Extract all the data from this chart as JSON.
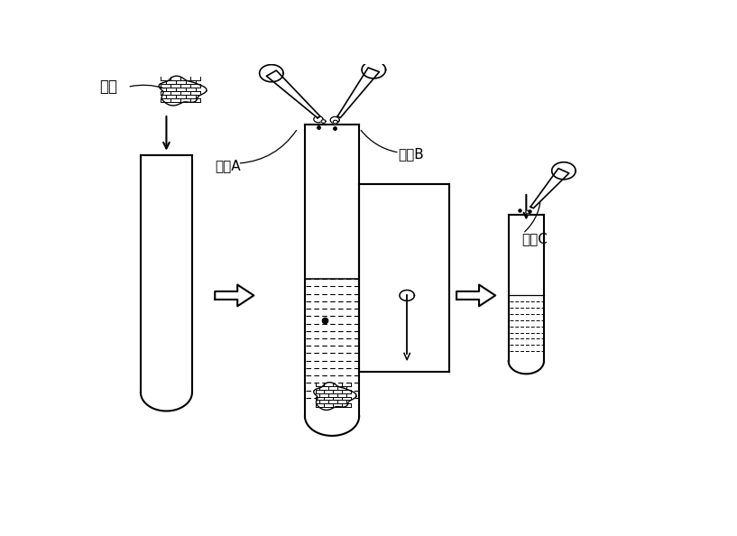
{
  "bg_color": "#ffffff",
  "line_color": "#000000",
  "label_jizhi": "基质",
  "label_shijia": "试剂A",
  "label_shijib": "试剂B",
  "label_shijic": "试剂C"
}
